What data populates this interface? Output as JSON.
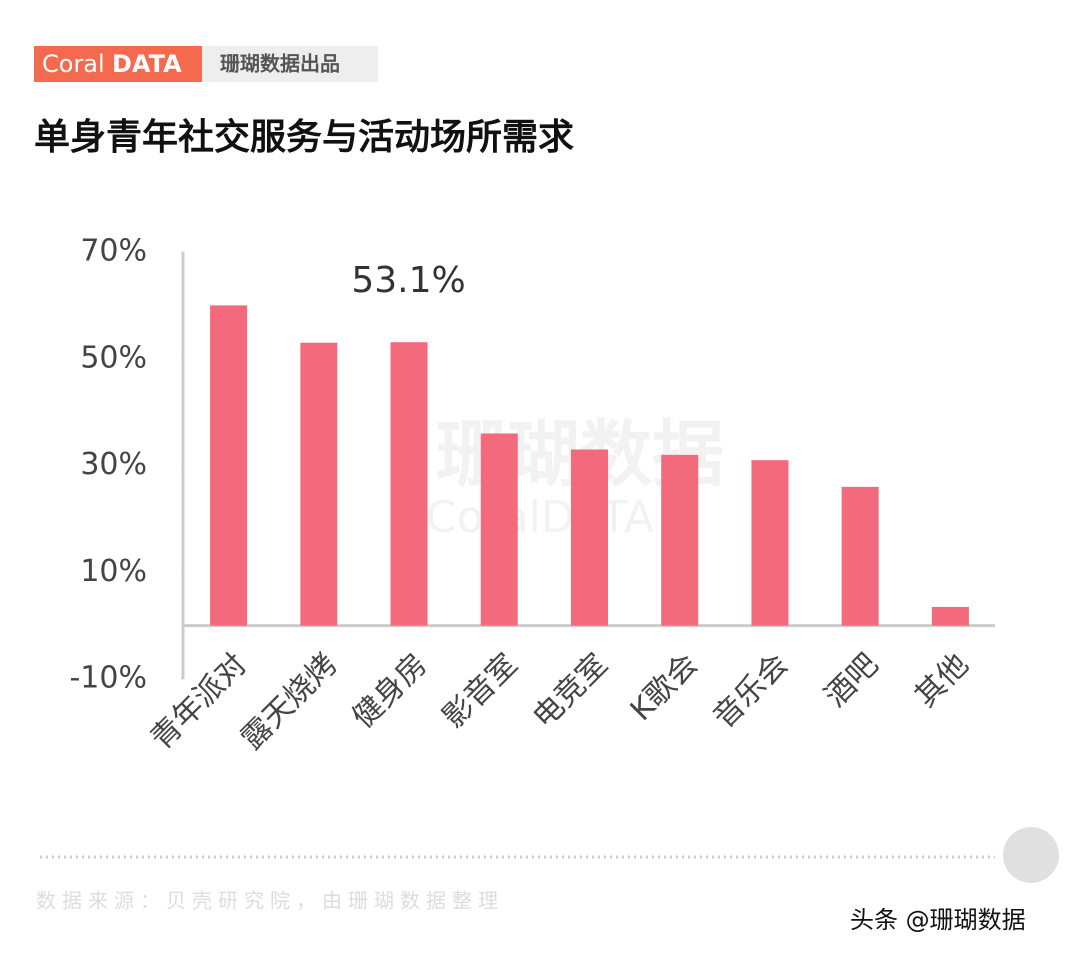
{
  "header": {
    "brand_light": "Coral",
    "brand_bold": "DATA",
    "tag": "珊瑚数据出品"
  },
  "chart_data": {
    "type": "bar",
    "title": "单身青年社交服务与活动场所需求",
    "categories": [
      "青年派对",
      "露天烧烤",
      "健身房",
      "影音室",
      "电竞室",
      "K歌会",
      "音乐会",
      "酒吧",
      "其他"
    ],
    "values": [
      60,
      53,
      53.1,
      36,
      33,
      32,
      31,
      26,
      3.5
    ],
    "value_labels": [
      null,
      null,
      "53.1%",
      null,
      null,
      null,
      null,
      null,
      null
    ],
    "color": "#f46a7d",
    "ylim": [
      -10,
      70
    ],
    "yticks": [
      {
        "value": 70,
        "label": "70%"
      },
      {
        "value": 50,
        "label": "50%"
      },
      {
        "value": 30,
        "label": "30%"
      },
      {
        "value": 10,
        "label": "10%"
      },
      {
        "value": -10,
        "label": "-10%"
      }
    ],
    "grid": false
  },
  "watermark": {
    "cn": "珊瑚数据",
    "en": "CoralDATA"
  },
  "footer": {
    "source": "数据来源：贝壳研究院，由珊瑚数据整理",
    "credit": "头条 @珊瑚数据"
  }
}
